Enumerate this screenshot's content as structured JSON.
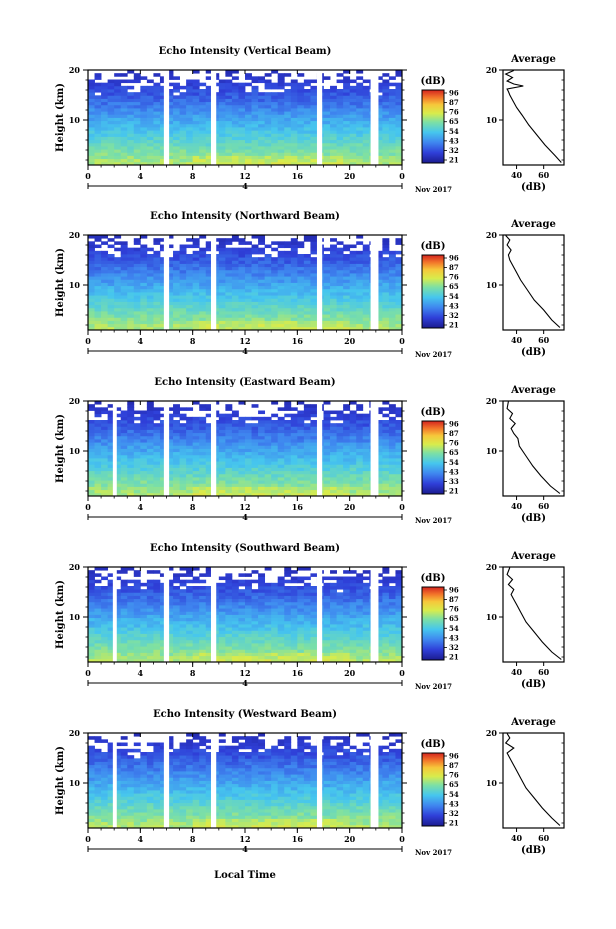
{
  "figure": {
    "x_label": "Local Time",
    "date_label": "Nov 2017",
    "day_label": "4"
  },
  "chart_data": [
    {
      "type": "heatmap",
      "title": "Echo Intensity (Vertical Beam)",
      "xlabel": "",
      "ylabel": "Height (km)",
      "xlim": [
        0,
        24
      ],
      "ylim": [
        1,
        20
      ],
      "x_ticks": [
        "0",
        "4",
        "8",
        "12",
        "16",
        "20",
        "0"
      ],
      "y_ticks": [
        "20",
        "10"
      ],
      "colorbar": {
        "label": "(dB)",
        "ticks": [
          "96",
          "87",
          "76",
          "65",
          "54",
          "43",
          "32",
          "21"
        ]
      },
      "gaps_hours": [
        [
          5.8,
          6.2
        ],
        [
          9.4,
          9.8
        ],
        [
          17.5,
          17.9
        ],
        [
          21.6,
          22.2
        ]
      ],
      "average": {
        "title": "Average",
        "xlabel": "(dB)",
        "x_ticks": [
          "40",
          "60"
        ],
        "y_ticks": [
          "20",
          "10"
        ],
        "xlim": [
          30,
          75
        ],
        "height_km": [
          1.5,
          3,
          5,
          7,
          9,
          11,
          12.5,
          14,
          15,
          15.7,
          16.2,
          16.8,
          17.2,
          17.8,
          18.5,
          19.2,
          19.9
        ],
        "db": [
          73,
          68,
          61,
          55,
          49,
          44,
          40,
          37,
          35,
          34,
          33,
          45,
          38,
          33,
          37,
          32,
          38
        ]
      }
    },
    {
      "type": "heatmap",
      "title": "Echo Intensity (Northward Beam)",
      "xlabel": "",
      "ylabel": "Height (km)",
      "xlim": [
        0,
        24
      ],
      "ylim": [
        1,
        20
      ],
      "x_ticks": [
        "0",
        "4",
        "8",
        "12",
        "16",
        "20",
        "0"
      ],
      "y_ticks": [
        "20",
        "10"
      ],
      "colorbar": {
        "label": "(dB)",
        "ticks": [
          "96",
          "87",
          "76",
          "65",
          "54",
          "43",
          "32",
          "21"
        ]
      },
      "gaps_hours": [
        [
          5.8,
          6.2
        ],
        [
          9.4,
          9.8
        ],
        [
          17.5,
          17.9
        ],
        [
          21.6,
          22.2
        ]
      ],
      "average": {
        "title": "Average",
        "xlabel": "(dB)",
        "x_ticks": [
          "40",
          "60"
        ],
        "y_ticks": [
          "20",
          "10"
        ],
        "xlim": [
          30,
          75
        ],
        "height_km": [
          1.5,
          3,
          5,
          7,
          9,
          11,
          12.5,
          14,
          15,
          16,
          17,
          18,
          19,
          19.9
        ],
        "db": [
          72,
          66,
          60,
          53,
          48,
          43,
          40,
          37,
          35,
          34,
          36,
          33,
          35,
          32
        ]
      }
    },
    {
      "type": "heatmap",
      "title": "Echo Intensity (Eastward Beam)",
      "xlabel": "",
      "ylabel": "Height (km)",
      "xlim": [
        0,
        24
      ],
      "ylim": [
        1,
        20
      ],
      "x_ticks": [
        "0",
        "4",
        "8",
        "12",
        "16",
        "20",
        "0"
      ],
      "y_ticks": [
        "20",
        "10"
      ],
      "colorbar": {
        "label": "(dB)",
        "ticks": [
          "96",
          "87",
          "76",
          "65",
          "54",
          "43",
          "33",
          "21"
        ]
      },
      "gaps_hours": [
        [
          1.9,
          2.2
        ],
        [
          5.8,
          6.2
        ],
        [
          9.4,
          9.8
        ],
        [
          17.5,
          17.9
        ],
        [
          21.6,
          22.2
        ]
      ],
      "average": {
        "title": "Average",
        "xlabel": "(dB)",
        "x_ticks": [
          "40",
          "60"
        ],
        "y_ticks": [
          "20",
          "10"
        ],
        "xlim": [
          30,
          75
        ],
        "height_km": [
          1.5,
          3,
          5,
          7,
          9,
          11,
          12.5,
          13.5,
          14.5,
          15.5,
          16.5,
          17.5,
          18.5,
          19.9
        ],
        "db": [
          72,
          65,
          58,
          52,
          47,
          42,
          41,
          38,
          36,
          39,
          35,
          37,
          33,
          34
        ]
      }
    },
    {
      "type": "heatmap",
      "title": "Echo Intensity (Southward Beam)",
      "xlabel": "",
      "ylabel": "Height (km)",
      "xlim": [
        0,
        24
      ],
      "ylim": [
        1,
        20
      ],
      "x_ticks": [
        "0",
        "4",
        "8",
        "12",
        "16",
        "20",
        "0"
      ],
      "y_ticks": [
        "20",
        "10"
      ],
      "colorbar": {
        "label": "(dB)",
        "ticks": [
          "96",
          "87",
          "76",
          "65",
          "54",
          "43",
          "32",
          "21"
        ]
      },
      "gaps_hours": [
        [
          1.9,
          2.2
        ],
        [
          5.8,
          6.2
        ],
        [
          9.4,
          9.8
        ],
        [
          17.5,
          17.9
        ],
        [
          21.6,
          22.2
        ]
      ],
      "average": {
        "title": "Average",
        "xlabel": "(dB)",
        "x_ticks": [
          "40",
          "60"
        ],
        "y_ticks": [
          "20",
          "10"
        ],
        "xlim": [
          30,
          75
        ],
        "height_km": [
          1.5,
          3,
          5,
          7,
          9,
          11,
          12.5,
          13.5,
          14.5,
          15.5,
          16.5,
          17.5,
          18.5,
          19.9
        ],
        "db": [
          73,
          66,
          59,
          53,
          47,
          43,
          40,
          38,
          36,
          38,
          34,
          37,
          33,
          35
        ]
      }
    },
    {
      "type": "heatmap",
      "title": "Echo Intensity (Westward Beam)",
      "xlabel": "",
      "ylabel": "Height (km)",
      "xlim": [
        0,
        24
      ],
      "ylim": [
        1,
        20
      ],
      "x_ticks": [
        "0",
        "4",
        "8",
        "12",
        "16",
        "20",
        "0"
      ],
      "y_ticks": [
        "20",
        "10"
      ],
      "colorbar": {
        "label": "(dB)",
        "ticks": [
          "96",
          "87",
          "76",
          "65",
          "54",
          "43",
          "32",
          "21"
        ]
      },
      "gaps_hours": [
        [
          1.9,
          2.2
        ],
        [
          5.8,
          6.2
        ],
        [
          9.4,
          9.8
        ],
        [
          17.5,
          17.9
        ],
        [
          21.6,
          22.2
        ]
      ],
      "average": {
        "title": "Average",
        "xlabel": "(dB)",
        "x_ticks": [
          "40",
          "60"
        ],
        "y_ticks": [
          "20",
          "10"
        ],
        "xlim": [
          30,
          75
        ],
        "height_km": [
          1.5,
          3,
          5,
          7,
          9,
          11,
          12.5,
          14,
          15,
          16,
          17,
          18,
          19,
          19.9
        ],
        "db": [
          72,
          66,
          59,
          53,
          47,
          43,
          40,
          37,
          35,
          33,
          38,
          32,
          35,
          33
        ]
      }
    }
  ]
}
